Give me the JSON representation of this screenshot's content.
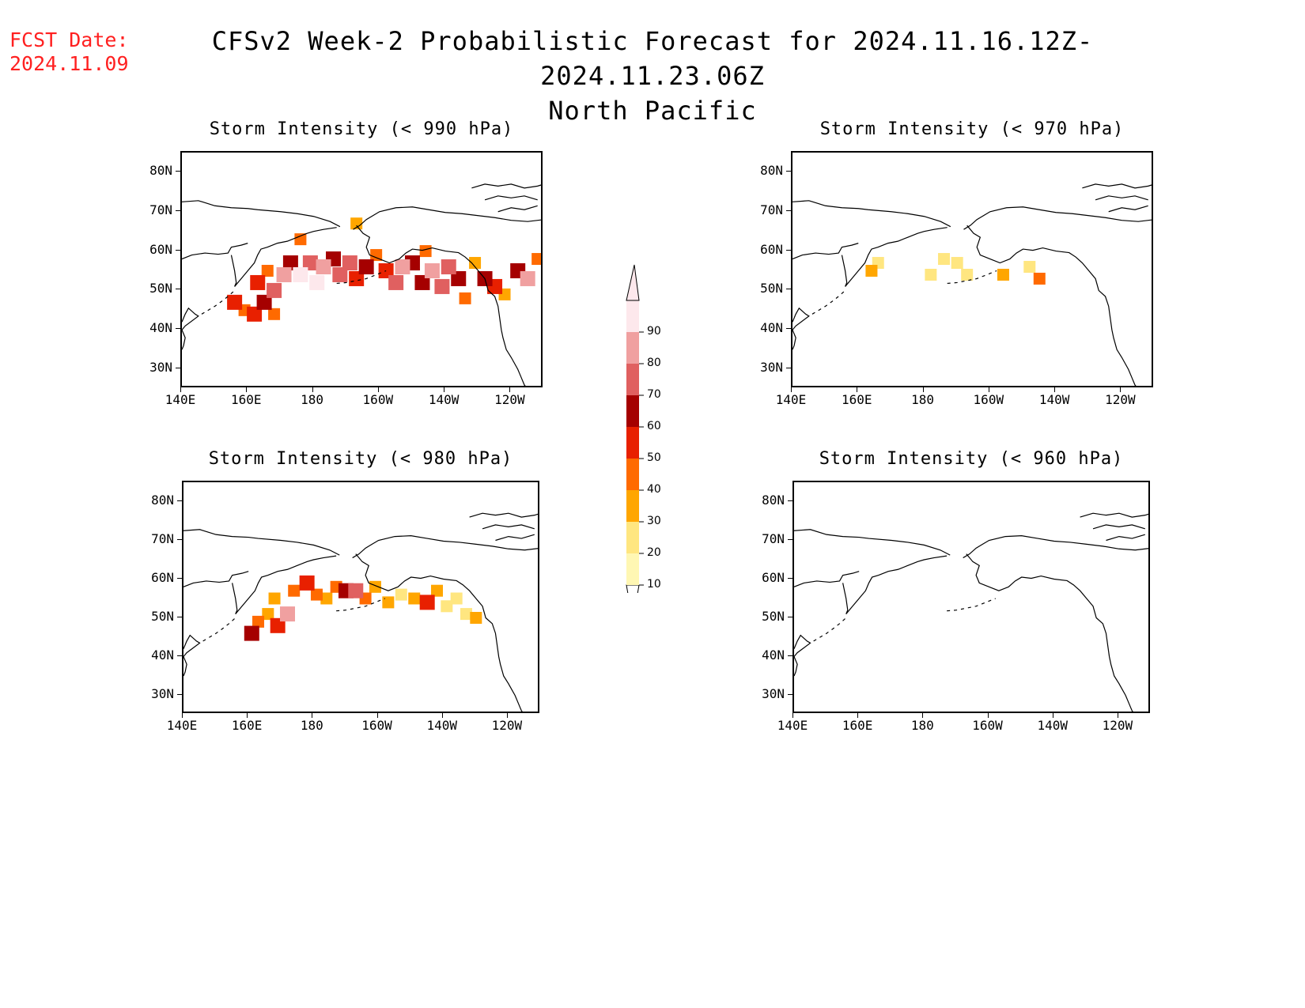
{
  "header": {
    "fcst_label": "FCST Date:",
    "fcst_date": "2024.11.09",
    "title": "CFSv2 Week-2 Probabilistic Forecast for 2024.11.16.12Z-2024.11.23.06Z",
    "subtitle": "North Pacific"
  },
  "colors": {
    "c10": "#fff7b3",
    "c20": "#ffe680",
    "c30": "#ffa600",
    "c40": "#ff6a00",
    "c50": "#e82000",
    "c60": "#a50000",
    "c70": "#e06060",
    "c80": "#f0a0a0",
    "c90": "#fde8ec"
  },
  "colorbar": {
    "levels": [
      "10",
      "20",
      "30",
      "40",
      "50",
      "60",
      "70",
      "80",
      "90"
    ]
  },
  "axes": {
    "lat_labels": [
      "80N",
      "70N",
      "60N",
      "50N",
      "40N",
      "30N"
    ],
    "lon_labels": [
      "140E",
      "160E",
      "180",
      "160W",
      "140W",
      "120W"
    ],
    "lat_values": [
      80,
      70,
      60,
      50,
      40,
      30
    ],
    "lon_values": [
      140,
      160,
      180,
      200,
      220,
      240
    ],
    "lon_range": [
      140,
      250
    ],
    "lat_range": [
      25,
      85
    ]
  },
  "panels": [
    {
      "title": "Storm Intensity (< 990 hPa)",
      "chart_data": {
        "type": "heatmap",
        "units": "probability (%)",
        "points": [
          {
            "lon": 156,
            "lat": 47,
            "p": 50
          },
          {
            "lon": 159,
            "lat": 45,
            "p": 40
          },
          {
            "lon": 162,
            "lat": 44,
            "p": 50
          },
          {
            "lon": 165,
            "lat": 47,
            "p": 60
          },
          {
            "lon": 168,
            "lat": 44,
            "p": 40
          },
          {
            "lon": 163,
            "lat": 52,
            "p": 50
          },
          {
            "lon": 166,
            "lat": 55,
            "p": 40
          },
          {
            "lon": 168,
            "lat": 50,
            "p": 70
          },
          {
            "lon": 171,
            "lat": 54,
            "p": 80
          },
          {
            "lon": 173,
            "lat": 57,
            "p": 60
          },
          {
            "lon": 176,
            "lat": 54,
            "p": 90
          },
          {
            "lon": 179,
            "lat": 57,
            "p": 70
          },
          {
            "lon": 181,
            "lat": 52,
            "p": 90
          },
          {
            "lon": 183,
            "lat": 56,
            "p": 80
          },
          {
            "lon": 186,
            "lat": 58,
            "p": 60
          },
          {
            "lon": 188,
            "lat": 54,
            "p": 70
          },
          {
            "lon": 191,
            "lat": 57,
            "p": 70
          },
          {
            "lon": 193,
            "lat": 53,
            "p": 50
          },
          {
            "lon": 196,
            "lat": 56,
            "p": 60
          },
          {
            "lon": 199,
            "lat": 59,
            "p": 40
          },
          {
            "lon": 202,
            "lat": 55,
            "p": 50
          },
          {
            "lon": 205,
            "lat": 52,
            "p": 70
          },
          {
            "lon": 207,
            "lat": 56,
            "p": 80
          },
          {
            "lon": 210,
            "lat": 57,
            "p": 60
          },
          {
            "lon": 213,
            "lat": 52,
            "p": 60
          },
          {
            "lon": 216,
            "lat": 55,
            "p": 80
          },
          {
            "lon": 219,
            "lat": 51,
            "p": 70
          },
          {
            "lon": 221,
            "lat": 56,
            "p": 70
          },
          {
            "lon": 224,
            "lat": 53,
            "p": 60
          },
          {
            "lon": 226,
            "lat": 48,
            "p": 40
          },
          {
            "lon": 229,
            "lat": 57,
            "p": 30
          },
          {
            "lon": 232,
            "lat": 53,
            "p": 60
          },
          {
            "lon": 235,
            "lat": 51,
            "p": 50
          },
          {
            "lon": 238,
            "lat": 49,
            "p": 30
          },
          {
            "lon": 242,
            "lat": 55,
            "p": 60
          },
          {
            "lon": 245,
            "lat": 53,
            "p": 80
          },
          {
            "lon": 248,
            "lat": 58,
            "p": 40
          },
          {
            "lon": 193,
            "lat": 67,
            "p": 30
          },
          {
            "lon": 214,
            "lat": 60,
            "p": 40
          },
          {
            "lon": 176,
            "lat": 63,
            "p": 40
          }
        ]
      }
    },
    {
      "title": "Storm Intensity (< 970 hPa)",
      "chart_data": {
        "type": "heatmap",
        "units": "probability (%)",
        "points": [
          {
            "lon": 166,
            "lat": 57,
            "p": 20
          },
          {
            "lon": 164,
            "lat": 55,
            "p": 30
          },
          {
            "lon": 182,
            "lat": 54,
            "p": 20
          },
          {
            "lon": 186,
            "lat": 58,
            "p": 20
          },
          {
            "lon": 190,
            "lat": 57,
            "p": 20
          },
          {
            "lon": 193,
            "lat": 54,
            "p": 20
          },
          {
            "lon": 204,
            "lat": 54,
            "p": 30
          },
          {
            "lon": 212,
            "lat": 56,
            "p": 20
          },
          {
            "lon": 215,
            "lat": 53,
            "p": 40
          }
        ]
      }
    },
    {
      "title": "Storm Intensity (< 980 hPa)",
      "chart_data": {
        "type": "heatmap",
        "units": "probability (%)",
        "points": [
          {
            "lon": 161,
            "lat": 46,
            "p": 60
          },
          {
            "lon": 163,
            "lat": 49,
            "p": 40
          },
          {
            "lon": 166,
            "lat": 51,
            "p": 30
          },
          {
            "lon": 169,
            "lat": 48,
            "p": 50
          },
          {
            "lon": 172,
            "lat": 51,
            "p": 80
          },
          {
            "lon": 168,
            "lat": 55,
            "p": 30
          },
          {
            "lon": 174,
            "lat": 57,
            "p": 40
          },
          {
            "lon": 178,
            "lat": 59,
            "p": 50
          },
          {
            "lon": 181,
            "lat": 56,
            "p": 40
          },
          {
            "lon": 184,
            "lat": 55,
            "p": 30
          },
          {
            "lon": 187,
            "lat": 58,
            "p": 40
          },
          {
            "lon": 190,
            "lat": 57,
            "p": 60
          },
          {
            "lon": 193,
            "lat": 57,
            "p": 70
          },
          {
            "lon": 196,
            "lat": 55,
            "p": 40
          },
          {
            "lon": 199,
            "lat": 58,
            "p": 30
          },
          {
            "lon": 203,
            "lat": 54,
            "p": 30
          },
          {
            "lon": 207,
            "lat": 56,
            "p": 20
          },
          {
            "lon": 211,
            "lat": 55,
            "p": 30
          },
          {
            "lon": 215,
            "lat": 54,
            "p": 50
          },
          {
            "lon": 218,
            "lat": 57,
            "p": 30
          },
          {
            "lon": 221,
            "lat": 53,
            "p": 20
          },
          {
            "lon": 224,
            "lat": 55,
            "p": 20
          },
          {
            "lon": 227,
            "lat": 51,
            "p": 20
          },
          {
            "lon": 230,
            "lat": 50,
            "p": 30
          }
        ]
      }
    },
    {
      "title": "Storm Intensity (< 960 hPa)",
      "chart_data": {
        "type": "heatmap",
        "units": "probability (%)",
        "points": []
      }
    }
  ]
}
